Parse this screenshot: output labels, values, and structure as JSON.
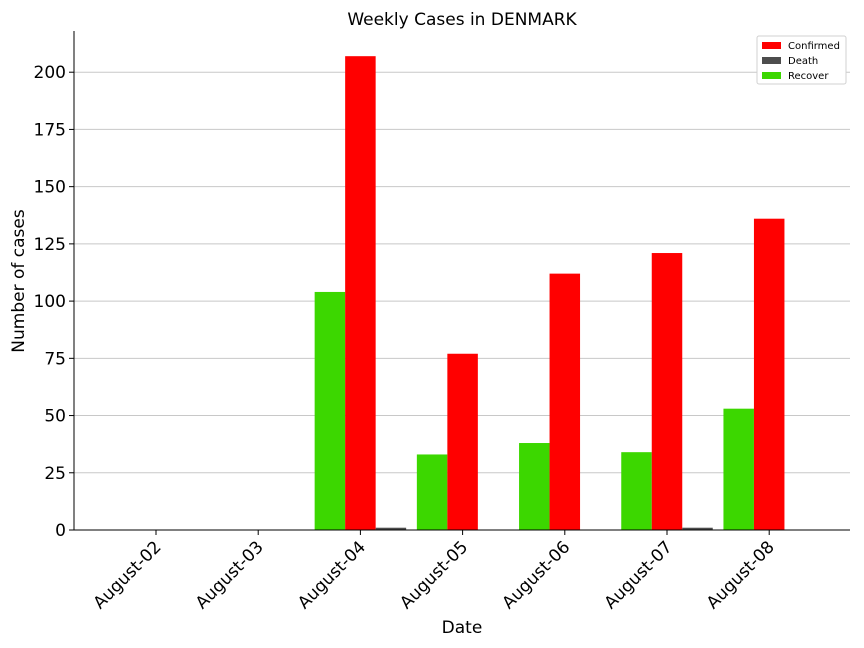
{
  "chart_data": {
    "type": "bar",
    "title": "Weekly Cases in DENMARK",
    "xlabel": "Date",
    "ylabel": "Number of cases",
    "categories": [
      "August-02",
      "August-03",
      "August-04",
      "August-05",
      "August-06",
      "August-07",
      "August-08"
    ],
    "series": [
      {
        "name": "Recover",
        "color": "#3cd700",
        "values": [
          0,
          0,
          104,
          33,
          38,
          34,
          53
        ]
      },
      {
        "name": "Confirmed",
        "color": "#ff0000",
        "values": [
          0,
          0,
          207,
          77,
          112,
          121,
          136
        ]
      },
      {
        "name": "Death",
        "color": "#4d4d4d",
        "values": [
          0,
          0,
          1,
          0,
          0,
          1,
          0
        ]
      }
    ],
    "legend_order": [
      "Confirmed",
      "Death",
      "Recover"
    ],
    "ylim": [
      0,
      218
    ],
    "yticks": [
      0,
      25,
      50,
      75,
      100,
      125,
      150,
      175,
      200
    ],
    "grid": "horizontal",
    "legend_position": "top-right"
  }
}
